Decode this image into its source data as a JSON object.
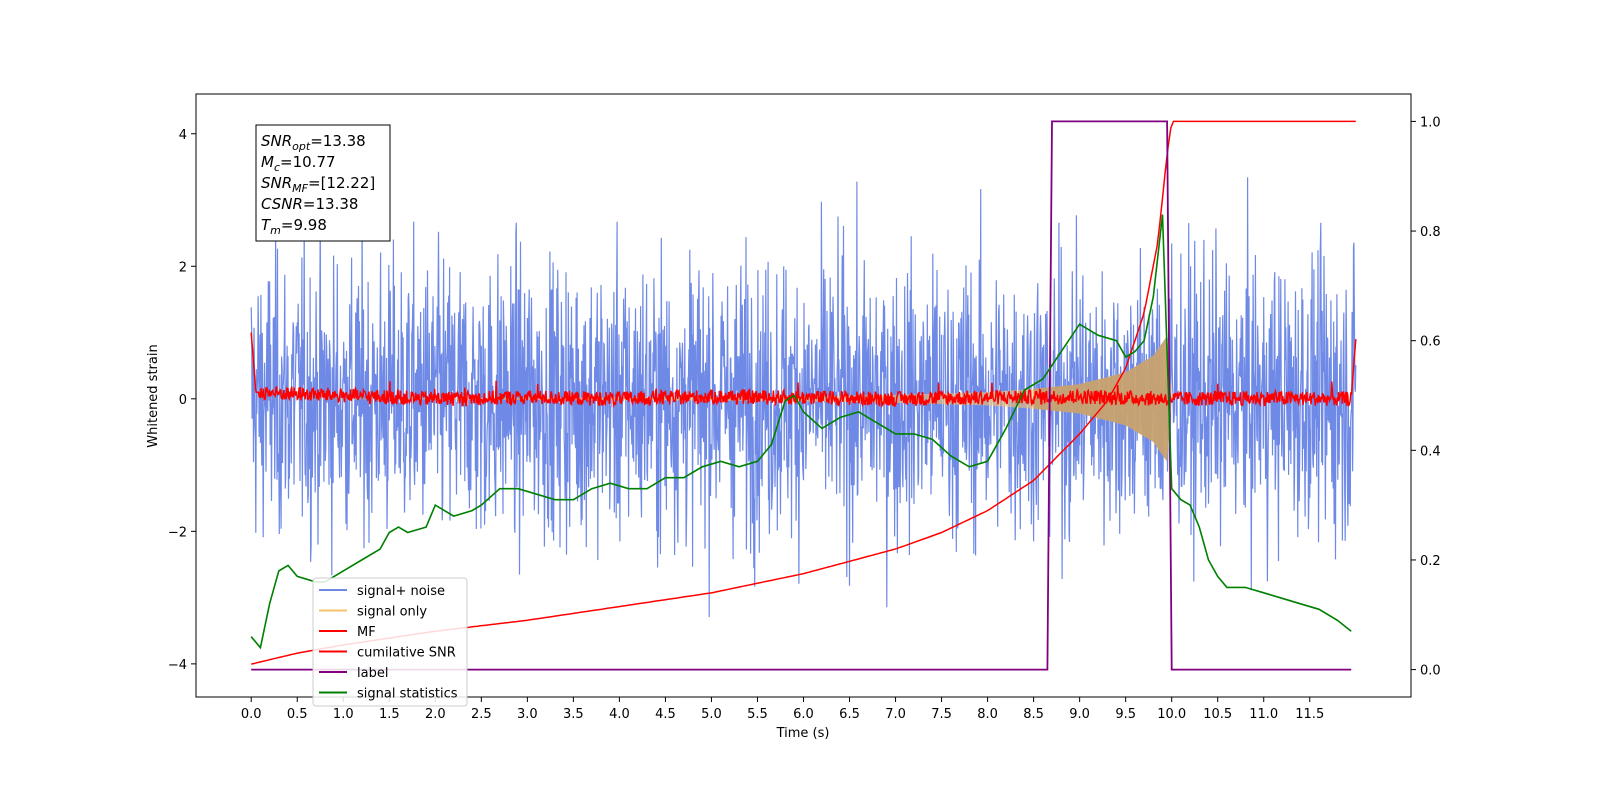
{
  "chart_data": {
    "type": "line",
    "xlabel": "Time (s)",
    "ylabel_left": "Whitened strain",
    "ylabel_right": "",
    "xlim": [
      -0.6,
      12.6
    ],
    "ylim_left": [
      -4.5,
      4.6
    ],
    "ylim_right": [
      -0.05,
      1.05
    ],
    "x_ticks": [
      "0.0",
      "0.5",
      "1.0",
      "1.5",
      "2.0",
      "2.5",
      "3.0",
      "3.5",
      "4.0",
      "4.5",
      "5.0",
      "5.5",
      "6.0",
      "6.5",
      "7.0",
      "7.5",
      "8.0",
      "8.5",
      "9.0",
      "9.5",
      "10.0",
      "10.5",
      "11.0",
      "11.5"
    ],
    "y_ticks_left": [
      "4",
      "2",
      "0",
      "−2",
      "−4"
    ],
    "y_ticks_right": [
      "1.0",
      "0.8",
      "0.6",
      "0.4",
      "0.2",
      "0.0"
    ],
    "grid": false,
    "legend_position": "lower-left",
    "series": [
      {
        "name": "signal+ noise",
        "axis": "left",
        "color": "#6f8ae6",
        "x_range": [
          0,
          12
        ],
        "noise_std": 1.05,
        "approx_max": 3.4,
        "approx_min": -4.1
      },
      {
        "name": "signal only",
        "axis": "left",
        "color": "#f5c36b",
        "x": [
          0,
          5.5,
          7.0,
          8.0,
          8.5,
          9.0,
          9.5,
          9.8,
          9.95,
          10.0
        ],
        "envelope": [
          0,
          0.03,
          0.06,
          0.1,
          0.15,
          0.22,
          0.4,
          0.65,
          0.95,
          0
        ]
      },
      {
        "name": "MF",
        "axis": "left",
        "color": "#ff0000",
        "x": [
          0,
          0.05,
          1,
          2,
          3,
          4,
          5,
          6,
          7,
          8,
          9,
          10,
          11,
          11.95,
          12.0
        ],
        "values": [
          1.0,
          0.1,
          0.05,
          0.0,
          0.02,
          0.0,
          0.03,
          0.02,
          0.0,
          0.02,
          0.03,
          0.0,
          0.01,
          0.0,
          0.9
        ]
      },
      {
        "name": "cumilative SNR",
        "axis": "right",
        "color": "#ff0000",
        "x": [
          0,
          0.5,
          1,
          2,
          3,
          4,
          5,
          6,
          7,
          7.5,
          8,
          8.5,
          9,
          9.3,
          9.5,
          9.7,
          9.85,
          9.95,
          10.0,
          12.0
        ],
        "values": [
          0.01,
          0.03,
          0.045,
          0.07,
          0.09,
          0.115,
          0.14,
          0.175,
          0.22,
          0.25,
          0.29,
          0.345,
          0.43,
          0.49,
          0.55,
          0.65,
          0.78,
          0.94,
          1.0,
          1.0
        ]
      },
      {
        "name": "label",
        "axis": "right",
        "color": "#800080",
        "x": [
          0,
          8.65,
          8.7,
          9.95,
          10.0,
          11.95
        ],
        "values": [
          0,
          0,
          1,
          1,
          0,
          0
        ]
      },
      {
        "name": "signal statistics",
        "axis": "right",
        "color": "#008000",
        "x": [
          0.0,
          0.1,
          0.2,
          0.3,
          0.4,
          0.5,
          0.7,
          0.8,
          1.0,
          1.2,
          1.4,
          1.5,
          1.6,
          1.7,
          1.9,
          2.0,
          2.2,
          2.4,
          2.5,
          2.7,
          2.9,
          3.1,
          3.3,
          3.5,
          3.7,
          3.9,
          4.1,
          4.3,
          4.5,
          4.7,
          4.9,
          5.1,
          5.3,
          5.5,
          5.65,
          5.8,
          5.9,
          6.0,
          6.2,
          6.4,
          6.6,
          6.8,
          7.0,
          7.2,
          7.4,
          7.6,
          7.8,
          8.0,
          8.2,
          8.4,
          8.6,
          8.8,
          9.0,
          9.2,
          9.4,
          9.5,
          9.6,
          9.7,
          9.8,
          9.9,
          10.0,
          10.1,
          10.2,
          10.3,
          10.4,
          10.5,
          10.6,
          10.8,
          11.0,
          11.2,
          11.4,
          11.6,
          11.8,
          11.95
        ],
        "values": [
          0.06,
          0.04,
          0.12,
          0.18,
          0.19,
          0.17,
          0.16,
          0.16,
          0.18,
          0.2,
          0.22,
          0.25,
          0.26,
          0.25,
          0.26,
          0.3,
          0.28,
          0.29,
          0.3,
          0.33,
          0.33,
          0.32,
          0.31,
          0.31,
          0.33,
          0.34,
          0.33,
          0.33,
          0.35,
          0.35,
          0.37,
          0.38,
          0.37,
          0.38,
          0.41,
          0.49,
          0.5,
          0.47,
          0.44,
          0.46,
          0.47,
          0.45,
          0.43,
          0.43,
          0.42,
          0.39,
          0.37,
          0.38,
          0.44,
          0.51,
          0.53,
          0.58,
          0.63,
          0.61,
          0.6,
          0.57,
          0.58,
          0.6,
          0.68,
          0.83,
          0.33,
          0.31,
          0.3,
          0.26,
          0.2,
          0.17,
          0.15,
          0.15,
          0.14,
          0.13,
          0.12,
          0.11,
          0.09,
          0.07
        ]
      },
      {
        "name": "",
        "axis": "left",
        "color": "#c4a070",
        "x": [
          8.5,
          9.0,
          9.5,
          9.8,
          9.95,
          10.0
        ],
        "envelope": [
          0.15,
          0.22,
          0.4,
          0.65,
          0.95,
          0
        ]
      }
    ],
    "annotation": [
      {
        "main": "SNR",
        "sub": "opt",
        "rest": "=13.38"
      },
      {
        "main": "M",
        "sub": "c",
        "rest": "=10.77"
      },
      {
        "main": "SNR",
        "sub": "MF",
        "rest": "=[12.22]"
      },
      {
        "main": "CSNR",
        "sub": "",
        "rest": "=13.38"
      },
      {
        "main": "T",
        "sub": "m",
        "rest": "=9.98"
      }
    ]
  }
}
